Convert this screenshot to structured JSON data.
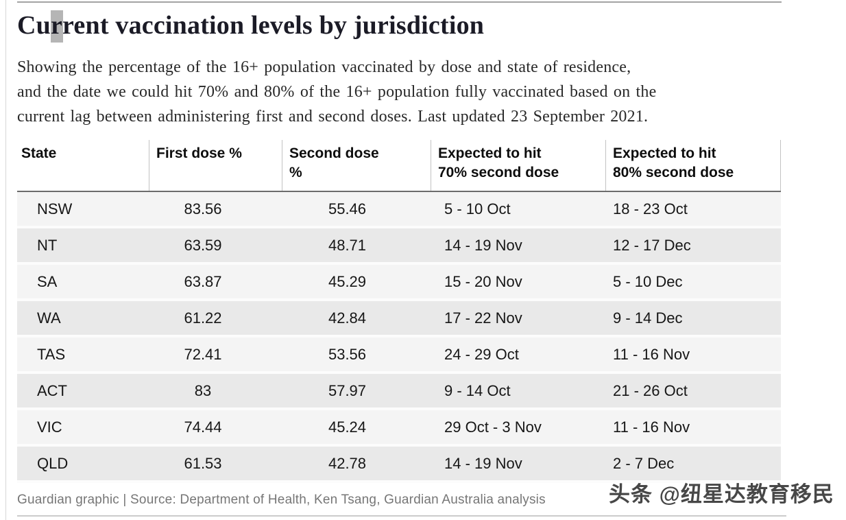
{
  "page": {
    "title": "Current vaccination levels by jurisdiction",
    "subtitle_lines": [
      "Showing the percentage of the 16+ population vaccinated by dose and state of residence,",
      "and the date we could hit 70% and 80% of the 16+ population fully vaccinated based on the",
      "current lag between administering first and second doses. Last updated 23 September 2021."
    ]
  },
  "table": {
    "columns": [
      {
        "label": [
          "State"
        ]
      },
      {
        "label": [
          "First dose %"
        ]
      },
      {
        "label": [
          "Second dose",
          "%"
        ]
      },
      {
        "label": [
          "Expected to hit",
          "70% second dose"
        ]
      },
      {
        "label": [
          "Expected to hit",
          "80% second dose"
        ]
      }
    ],
    "rows": [
      {
        "state": "NSW",
        "first_dose": "83.56",
        "second_dose": "55.46",
        "hit70": "5 - 10 Oct",
        "hit80": "18 - 23 Oct"
      },
      {
        "state": "NT",
        "first_dose": "63.59",
        "second_dose": "48.71",
        "hit70": "14 - 19 Nov",
        "hit80": "12 - 17 Dec"
      },
      {
        "state": "SA",
        "first_dose": "63.87",
        "second_dose": "45.29",
        "hit70": "15 - 20 Nov",
        "hit80": "5 - 10 Dec"
      },
      {
        "state": "WA",
        "first_dose": "61.22",
        "second_dose": "42.84",
        "hit70": "17 - 22 Nov",
        "hit80": "9 - 14 Dec"
      },
      {
        "state": "TAS",
        "first_dose": "72.41",
        "second_dose": "53.56",
        "hit70": "24 - 29 Oct",
        "hit80": "11 - 16 Nov"
      },
      {
        "state": "ACT",
        "first_dose": "83",
        "second_dose": "57.97",
        "hit70": "9 - 14 Oct",
        "hit80": "21 - 26 Oct"
      },
      {
        "state": "VIC",
        "first_dose": "74.44",
        "second_dose": "45.24",
        "hit70": "29 Oct - 3 Nov",
        "hit80": "11 - 16 Nov"
      },
      {
        "state": "QLD",
        "first_dose": "61.53",
        "second_dose": "42.78",
        "hit70": "14 - 19 Nov",
        "hit80": "2 - 7 Dec"
      }
    ]
  },
  "footer": {
    "source": "Guardian graphic | Source: Department of Health, Ken Tsang, Guardian Australia analysis",
    "watermark": "头条 @纽星达教育移民"
  },
  "colors": {
    "row_light": "#f4f4f4",
    "row_dark": "#e9e9e9",
    "header_rule": "#6b6b6b",
    "column_divider": "#c2c2c2",
    "title_text": "#1b1b26",
    "body_text": "#161616",
    "source_text": "#767676",
    "cursor_rect": "#b5b5b5"
  },
  "chart_data": {
    "type": "table",
    "title": "Current vaccination levels by jurisdiction",
    "subtitle": "Showing the percentage of the 16+ population vaccinated by dose and state of residence, and the date we could hit 70% and 80% of the 16+ population fully vaccinated based on the current lag between administering first and second doses. Last updated 23 September 2021.",
    "columns": [
      "State",
      "First dose %",
      "Second dose %",
      "Expected to hit 70% second dose",
      "Expected to hit 80% second dose"
    ],
    "rows": [
      [
        "NSW",
        83.56,
        55.46,
        "5 - 10 Oct",
        "18 - 23 Oct"
      ],
      [
        "NT",
        63.59,
        48.71,
        "14 - 19 Nov",
        "12 - 17 Dec"
      ],
      [
        "SA",
        63.87,
        45.29,
        "15 - 20 Nov",
        "5 - 10 Dec"
      ],
      [
        "WA",
        61.22,
        42.84,
        "17 - 22 Nov",
        "9 - 14 Dec"
      ],
      [
        "TAS",
        72.41,
        53.56,
        "24 - 29 Oct",
        "11 - 16 Nov"
      ],
      [
        "ACT",
        83,
        57.97,
        "9 - 14 Oct",
        "21 - 26 Oct"
      ],
      [
        "VIC",
        74.44,
        45.24,
        "29 Oct - 3 Nov",
        "11 - 16 Nov"
      ],
      [
        "QLD",
        61.53,
        42.78,
        "14 - 19 Nov",
        "2 - 7 Dec"
      ]
    ],
    "source": "Guardian graphic | Source: Department of Health, Ken Tsang, Guardian Australia analysis",
    "notes": "Percentages are of the 16+ population; striped rows; no gridlines within body other than header rule"
  }
}
